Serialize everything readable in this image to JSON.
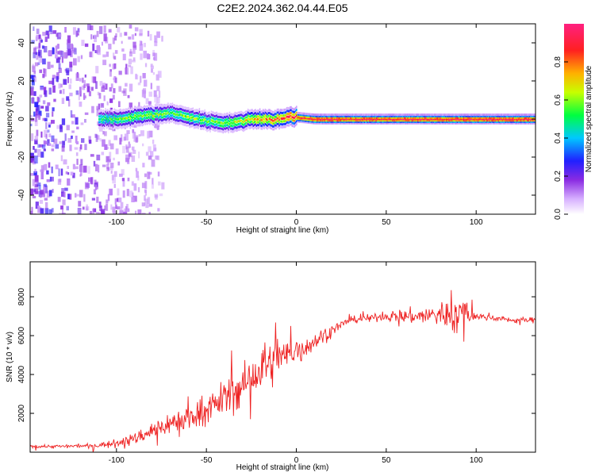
{
  "title": "C2E2.2024.362.04.44.E05",
  "chart_data": [
    {
      "type": "heatmap",
      "xlabel": "Height of straight line (km)",
      "ylabel": "Frequency (Hz)",
      "xlim": [
        -148,
        133
      ],
      "ylim": [
        -50,
        50
      ],
      "xticks": [
        -100,
        -50,
        0,
        50,
        100
      ],
      "yticks": [
        -40,
        -20,
        0,
        20,
        40
      ],
      "colorbar": {
        "label": "Normalized spectral amplitude",
        "range": [
          0,
          1
        ],
        "ticks": [
          0.0,
          0.2,
          0.4,
          0.6,
          0.8
        ],
        "colors": [
          "#ffffff",
          "#9c31ff",
          "#2020ff",
          "#00e0ff",
          "#00ff40",
          "#c8ff00",
          "#ffb000",
          "#ff2020",
          "#ff2080"
        ]
      },
      "ridge": {
        "x": [
          -110,
          -100,
          -90,
          -85,
          -80,
          -70,
          -60,
          -50,
          -40,
          -30,
          -20,
          -10,
          -5,
          0,
          10,
          30,
          60,
          90,
          133
        ],
        "frequency": [
          0,
          0,
          1,
          2,
          2,
          3,
          1,
          -1,
          -2,
          -1,
          0,
          0,
          1,
          1,
          0,
          0,
          0,
          0,
          0
        ],
        "amplitude": [
          0.5,
          0.55,
          0.6,
          0.6,
          0.6,
          0.55,
          0.6,
          0.55,
          0.6,
          0.65,
          0.75,
          0.8,
          0.85,
          0.9,
          0.95,
          0.95,
          0.95,
          0.95,
          0.95
        ]
      },
      "noise_region_x": [
        -148,
        -85
      ],
      "grid": false
    },
    {
      "type": "line",
      "xlabel": "Height of straight line (km)",
      "ylabel": "SNR (10 * v/v)",
      "xlim": [
        -148,
        133
      ],
      "ylim": [
        0,
        9800
      ],
      "xticks": [
        -100,
        -50,
        0,
        50,
        100
      ],
      "yticks": [
        2000,
        4000,
        6000,
        8000
      ],
      "series": [
        {
          "color": "#ee2222",
          "x": [
            -148,
            -130,
            -110,
            -100,
            -90,
            -80,
            -70,
            -60,
            -50,
            -40,
            -30,
            -20,
            -10,
            0,
            10,
            20,
            30,
            40,
            50,
            60,
            70,
            80,
            90,
            95,
            100,
            110,
            120,
            133
          ],
          "y": [
            300,
            300,
            350,
            500,
            700,
            1100,
            1500,
            1800,
            2200,
            2800,
            3400,
            4200,
            4800,
            5200,
            5700,
            6300,
            6800,
            6900,
            7000,
            7000,
            7000,
            7100,
            7100,
            7200,
            7000,
            6900,
            6800,
            6800
          ],
          "spread": [
            150,
            150,
            200,
            300,
            500,
            900,
            1000,
            1100,
            1200,
            1600,
            1800,
            2200,
            1800,
            1400,
            900,
            500,
            300,
            300,
            350,
            700,
            700,
            1200,
            1600,
            1400,
            300,
            250,
            250,
            250
          ]
        }
      ],
      "grid": false
    }
  ]
}
